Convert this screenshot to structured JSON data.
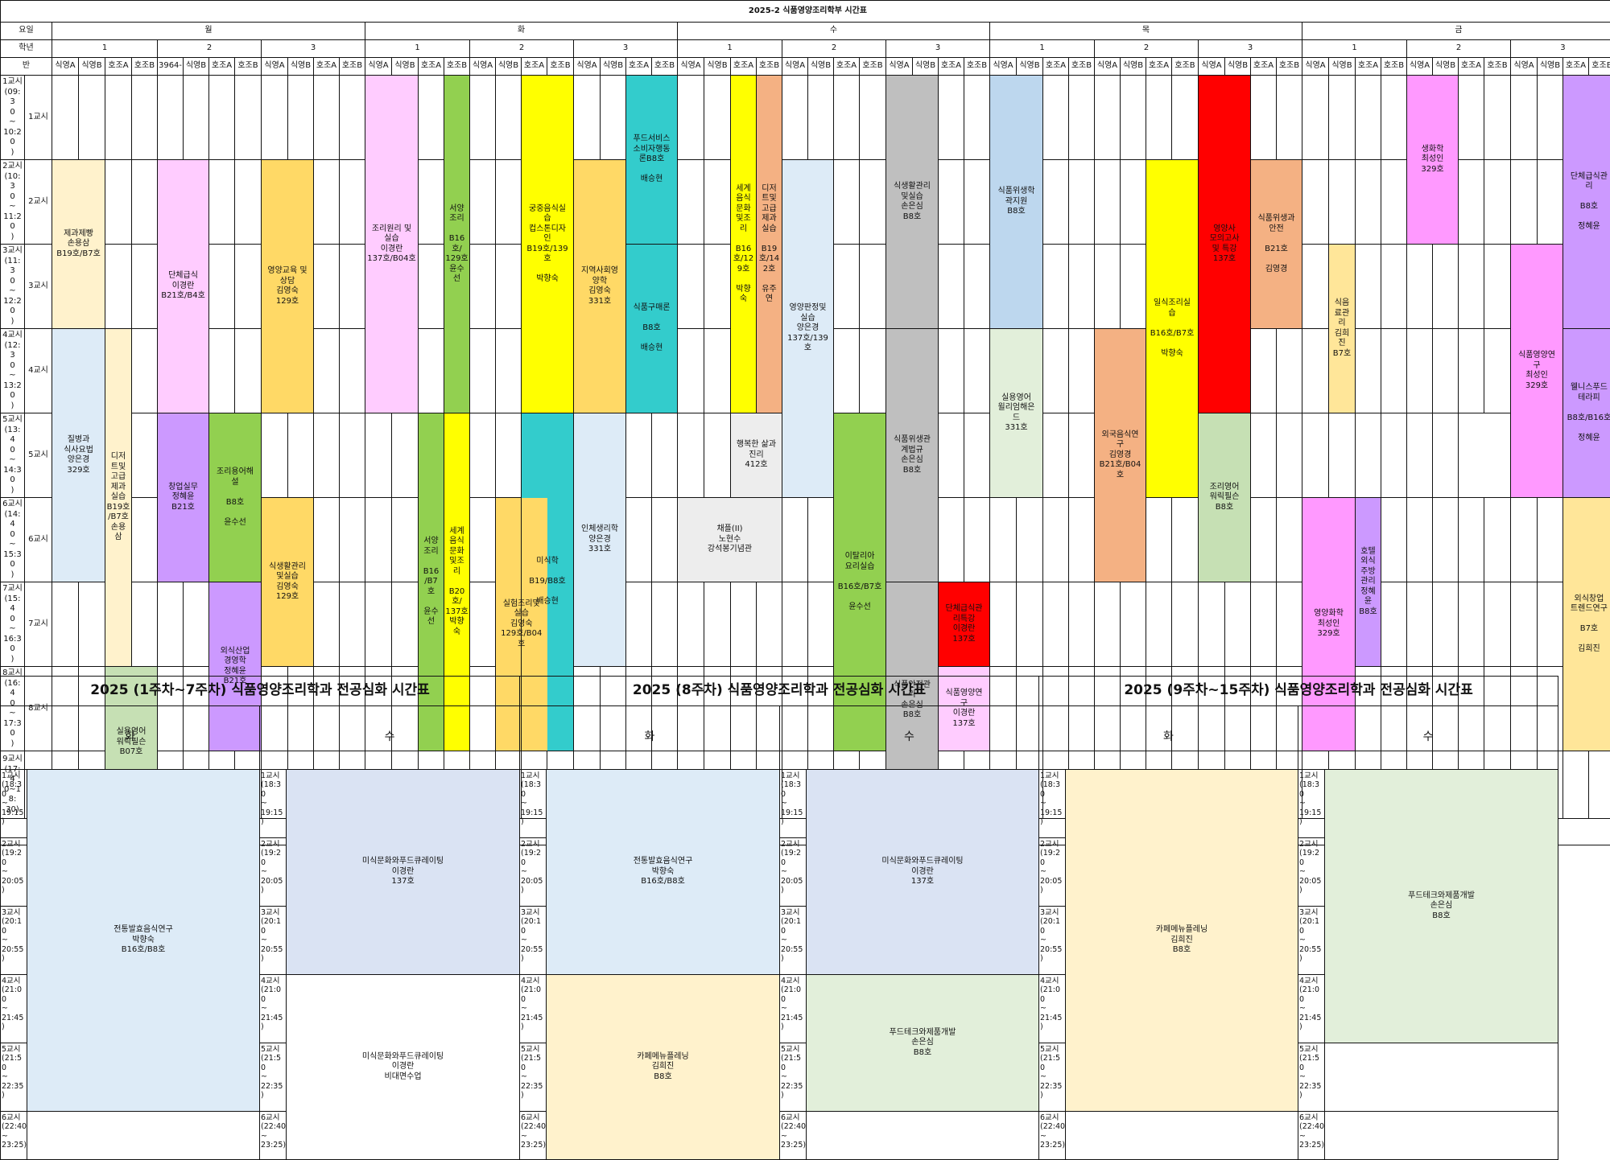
{
  "title": "2025-2 식품영양조리학부 시간표",
  "labels": {
    "day": "요일",
    "grade": "학년",
    "class": "반"
  },
  "days": [
    "월",
    "화",
    "수",
    "목",
    "금"
  ],
  "grades": [
    "1",
    "2",
    "3"
  ],
  "classes": [
    "식영A",
    "식영B",
    "호조A",
    "호조B"
  ],
  "partial_note": "3964-",
  "periods": [
    {
      "time": "1교시\n(09:3\n0\n~\n10:20\n)",
      "label": "1교시"
    },
    {
      "time": "2교시\n(10:3\n0\n~\n11:20\n)",
      "label": "2교시"
    },
    {
      "time": "3교시\n(11:3\n0\n~\n12:20\n)",
      "label": "3교시"
    },
    {
      "time": "4교시\n(12:3\n0\n~\n13:20\n)",
      "label": "4교시"
    },
    {
      "time": "5교시\n(13:4\n0\n~\n14:30\n)",
      "label": "5교시"
    },
    {
      "time": "6교시\n(14:4\n0\n~\n15:30\n)",
      "label": "6교시"
    },
    {
      "time": "7교시\n(15:4\n0\n~\n16:30\n)",
      "label": "7교시"
    },
    {
      "time": "8교시\n(16:4\n0\n~\n17:30\n)",
      "label": "8교시"
    },
    {
      "time": "9교시\n(17:4\n0~18:\n30)",
      "label": "9교시"
    }
  ],
  "colors": {
    "cream": "#fff2cc",
    "lightblue": "#ddebf7",
    "pink": "#ffccff",
    "purple": "#cc99ff",
    "green": "#92d050",
    "orange": "#ffd966",
    "sage": "#c6e0b4",
    "yellow": "#ffff00",
    "teal": "#33cccc",
    "salmon": "#f4b183",
    "gray": "#bfbfbf",
    "skyblue": "#bdd7ee",
    "magenta": "#ff99ff",
    "red": "#ff0000",
    "paleg": "#e2efda",
    "offwhite": "#ededed",
    "lightpink": "#ffccff",
    "violet": "#cc99ff",
    "lav": "#dae3f3"
  },
  "courses": {
    "mon": {
      "c1": "제과제빵\n손용삼\nB19호/B7호",
      "c2": "질병과\n식사요법\n양은경\n329호",
      "c3": "디저\n트및\n고급\n제과\n실습\nB19호\n/B7호\n손용\n삼",
      "c4": "실용영어\n워릭필슨\nB07호",
      "c5": "단체급식\n이경란\nB21호/B4호",
      "c6": "창업실무\n정혜윤\nB21호",
      "c7": "조리용어해\n설\n\nB8호\n\n윤수선",
      "c8": "외식산업\n경영학\n정혜윤\nB21호",
      "c9": "영양교육 및\n상담\n김영숙\n129호",
      "c10": "식생활관리\n및실습\n김영숙\n129호"
    },
    "tue": {
      "c1": "조리원리 및\n실습\n이경란\n137호/B04호",
      "c2": "서양\n조리\n\nB16\n호/\n129호\n윤수\n선",
      "c3": "서양\n조리\n\nB16\n/B7\n호\n\n윤수\n선",
      "c4": "세계\n음식\n문화\n및조\n리\n\nB20\n호/\n137호\n박향\n숙",
      "c5": "실험조리및\n실습\n김영숙\n129호/B04호",
      "c6": "궁중음식실\n습\n컵스톤디자\n인\nB19호/139호\n\n박향숙",
      "c7": "미식학\n\nB19/B8호\n\n배승현",
      "c8": "지역사회영\n양학\n김영숙\n331호",
      "c9": "인체생리학\n양은경\n331호",
      "c10": "푸드서비스\n소비자행동\n론B8호\n\n배승현",
      "c11": "식품구매론\n\nB8호\n\n배승현"
    },
    "wed": {
      "c1": "세계\n음식\n문화\n및조\n리\n\nB16\n호/12\n9호\n\n박향\n숙",
      "c2": "디저\n트및\n고급\n제과\n실습\n\nB19\n호/14\n2호\n\n유주\n연",
      "c3": "행복한 삶과\n진리\n412호",
      "c4": "채플(II)\n노현수\n강석봉기념관",
      "c5": "영양판정및\n실습\n양은경\n137호/139호",
      "c6": "식품안전관\n리\n손은심\nB8호",
      "c7": "이탈리아\n요리실습\n\nB16호/B7호\n\n윤수선",
      "c8": "식생활관리\n및실습\n손은심\nB8호",
      "c9": "식품위생관\n계법규\n손은심\nB8호",
      "c10": "단체급식관\n리특강\n이경란\n137호",
      "c11": "식품영양연\n구\n이경란\n137호"
    },
    "thu": {
      "c1": "식품위생학\n곽지원\nB8호",
      "c2": "실용영어\n윌리엄해은\n드\n331호",
      "c3": "외국음식연\n구\n김영경\nB21호/B04호",
      "c4": "일식조리실\n습\n\nB16호/B7호\n\n박향숙",
      "c5": "영양사\n모의고사\n및 특강\n137호",
      "c6": "식품위생과\n안전\n\nB21호\n\n김영경",
      "c7": "조리영어\n워릭필슨\nB8호"
    },
    "fri": {
      "c1": "영양화학\n최성인\n329호",
      "c2": "식음\n료관\n리\n김희\n진\nB7호",
      "c3": "호텔\n외식\n주방\n관리\n정혜\n윤\nB8호",
      "c4": "생화학\n최성인\n329호",
      "c5": "식품영양연\n구\n최성인\n329호",
      "c6": "단체급식관\n리\n\nB8호\n\n정혜윤",
      "c7": "웰니스푸드\n테라피\n\nB8호/B16호\n\n정혜윤",
      "c8": "외식창업\n트렌드연구\n\nB7호\n\n김희진"
    }
  },
  "sub_periods": [
    "1교시\n(18:3\n0\n~\n19:15\n)",
    "2교시\n(19:2\n0\n~\n20:05\n)",
    "3교시\n(20:1\n0\n~\n20:55\n)",
    "4교시\n(21:0\n0\n~\n21:45\n)",
    "5교시\n(21:5\n0\n~\n22:35\n)",
    "6교시\n(22:40\n~\n23:25)"
  ],
  "sub_tables": [
    {
      "title": "2025 (1주차~7주차) 식품영양조리학과 전공심화 시간표",
      "days": [
        "화",
        "수"
      ],
      "tue_a": "전통발효음식연구\n박향숙\nB16호/B8호",
      "wed_a": "미식문화와푸드큐레이팅\n이경란\n137호",
      "wed_b": "미식문화와푸드큐레이팅\n이경란\n비대면수업"
    },
    {
      "title": "2025 (8주차) 식품영양조리학과 전공심화 시간표",
      "days": [
        "화",
        "수"
      ],
      "tue_a": "전통발효음식연구\n박향숙\nB16호/B8호",
      "tue_b": "카페메뉴플레닝\n김희진\nB8호",
      "wed_a": "미식문화와푸드큐레이팅\n이경란\n137호",
      "wed_b": "푸드테크와제품개발\n손은심\nB8호"
    },
    {
      "title": "2025 (9주차~15주차) 식품영양조리학과 전공심화 시간표",
      "days": [
        "화",
        "수"
      ],
      "tue_a": "카페메뉴플레닝\n김희진\nB8호",
      "wed_a": "푸드테크와제품개발\n손은심\nB8호"
    }
  ]
}
